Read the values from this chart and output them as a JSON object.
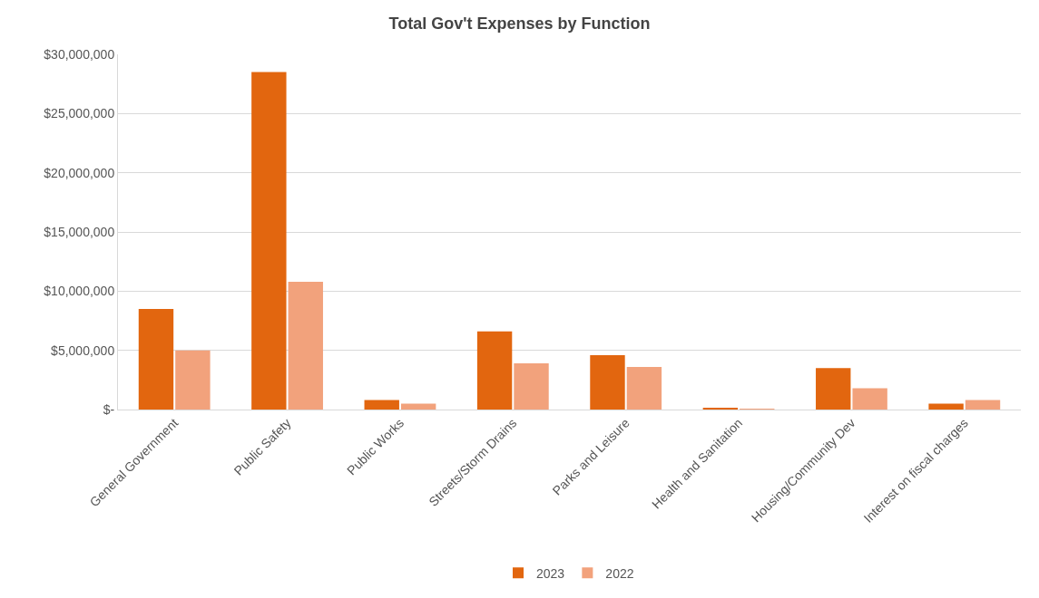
{
  "chart_data": {
    "type": "bar",
    "title": "Total Gov't Expenses by Function",
    "categories": [
      "General Government",
      "Public Safety",
      "Public Works",
      "Streets/Storm Drains",
      "Parks and Leisure",
      "Health and Sanitation",
      "Housing/Community Dev",
      "Interest on fiscal charges"
    ],
    "series": [
      {
        "name": "2023",
        "color": "#e2660f",
        "values": [
          8500000,
          28500000,
          800000,
          6600000,
          4600000,
          100000,
          3500000,
          500000
        ]
      },
      {
        "name": "2022",
        "color": "#f2a27c",
        "values": [
          5000000,
          10800000,
          500000,
          3900000,
          3600000,
          50000,
          1800000,
          800000
        ]
      }
    ],
    "ylim": [
      0,
      30000000
    ],
    "yticks": [
      {
        "value": 0,
        "label": "$-"
      },
      {
        "value": 5000000,
        "label": "$5,000,000"
      },
      {
        "value": 10000000,
        "label": "$10,000,000"
      },
      {
        "value": 15000000,
        "label": "$15,000,000"
      },
      {
        "value": 20000000,
        "label": "$20,000,000"
      },
      {
        "value": 25000000,
        "label": "$25,000,000"
      },
      {
        "value": 30000000,
        "label": "$30,000,000"
      }
    ],
    "grid": "y",
    "legend": "bottom"
  }
}
